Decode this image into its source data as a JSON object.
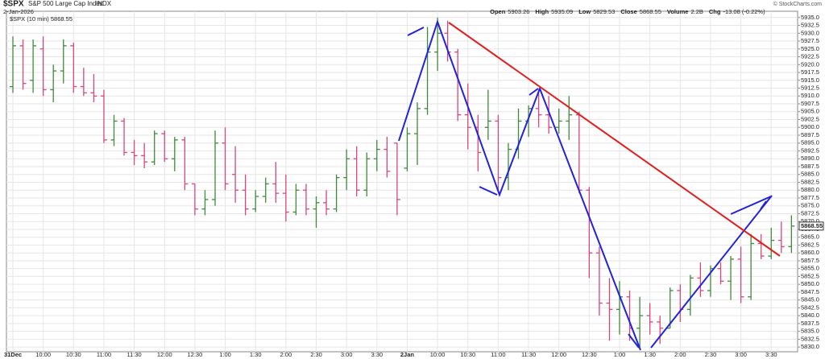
{
  "header": {
    "symbol": "$SPX",
    "name": "S&P 500 Large Cap Index",
    "exchange": "INDX",
    "date": "2-Jan-2026",
    "stats": [
      {
        "label": "Open",
        "value": "5903.26"
      },
      {
        "label": "High",
        "value": "5935.09"
      },
      {
        "label": "Low",
        "value": "5829.53"
      },
      {
        "label": "Close",
        "value": "5868.55"
      },
      {
        "label": "Volume",
        "value": "2.2B"
      },
      {
        "label": "Chg",
        "value": "-13.08 (-0.22%)"
      }
    ],
    "copyright": "© StockCharts.com"
  },
  "chart_data": {
    "type": "ohlc",
    "legend": "$SPX (10 min) 5868.55",
    "last_price": 5868.55,
    "up_color": "#3f8a3a",
    "down_color": "#d9467a",
    "grid": true,
    "categories": [
      "31Dec",
      null,
      null,
      "10:00",
      null,
      null,
      "10:30",
      null,
      null,
      "11:00",
      null,
      null,
      "11:30",
      null,
      null,
      "12:00",
      null,
      null,
      "12:30",
      null,
      null,
      "1:00",
      null,
      null,
      "1:30",
      null,
      null,
      "2:00",
      null,
      null,
      "2:30",
      null,
      null,
      "3:00",
      null,
      null,
      "3:30",
      null,
      null,
      "2Jan",
      null,
      null,
      "10:00",
      null,
      null,
      "10:30",
      null,
      null,
      "11:00",
      null,
      null,
      "11:30",
      null,
      null,
      "12:00",
      null,
      null,
      "12:30",
      null,
      null,
      "1:00",
      null,
      null,
      "1:30",
      null,
      null,
      "2:00",
      null,
      null,
      "2:30",
      null,
      null,
      "3:00",
      null,
      null,
      "3:30",
      null,
      null
    ],
    "open": [
      5913,
      5926,
      5915,
      5925,
      5912,
      5918,
      5926,
      5913,
      5911,
      5910,
      5896,
      5902,
      5892,
      5891,
      5889,
      5898,
      5890,
      5896,
      5882,
      5874,
      5877,
      5895,
      5885,
      5880,
      5874,
      5878,
      5882,
      5879,
      5873,
      5880,
      5874,
      5876,
      5874,
      5884,
      5890,
      5880,
      5890,
      5893,
      5895,
      5887,
      5898,
      5906,
      5924,
      5930,
      5924,
      5904,
      5900,
      5900,
      5902,
      5884,
      5893,
      5902,
      5906,
      5904,
      5900,
      5902,
      5904,
      5880,
      5860,
      5844,
      5842,
      5846,
      5836,
      5840,
      5838,
      5836,
      5848,
      5842,
      5852,
      5848,
      5855,
      5851,
      5858,
      5846,
      5863,
      5859,
      5864,
      5862
    ],
    "high": [
      5929,
      5928,
      5928,
      5929,
      5920,
      5928,
      5927,
      5919,
      5917,
      5912,
      5904,
      5903,
      5896,
      5895,
      5899,
      5899,
      5897,
      5897,
      5882,
      5880,
      5899,
      5900,
      5894,
      5885,
      5880,
      5884,
      5889,
      5885,
      5882,
      5882,
      5878,
      5880,
      5885,
      5893,
      5894,
      5892,
      5896,
      5897,
      5895,
      5900,
      5908,
      5932,
      5935,
      5934,
      5925,
      5914,
      5904,
      5912,
      5904,
      5895,
      5906,
      5907,
      5912,
      5910,
      5906,
      5910,
      5905,
      5881,
      5862,
      5852,
      5851,
      5848,
      5846,
      5844,
      5840,
      5849,
      5850,
      5853,
      5857,
      5856,
      5857,
      5859,
      5862,
      5866,
      5866,
      5868,
      5870,
      5872
    ],
    "low": [
      5911,
      5912,
      5911,
      5910,
      5908,
      5914,
      5911,
      5910,
      5908,
      5895,
      5894,
      5891,
      5888,
      5887,
      5888,
      5889,
      5886,
      5880,
      5872,
      5872,
      5875,
      5880,
      5876,
      5872,
      5873,
      5876,
      5876,
      5870,
      5872,
      5872,
      5868,
      5872,
      5873,
      5880,
      5878,
      5878,
      5886,
      5884,
      5872,
      5886,
      5888,
      5904,
      5918,
      5921,
      5902,
      5893,
      5886,
      5896,
      5880,
      5880,
      5890,
      5897,
      5900,
      5898,
      5898,
      5896,
      5879,
      5852,
      5840,
      5832,
      5834,
      5832,
      5830,
      5834,
      5831,
      5836,
      5838,
      5840,
      5846,
      5846,
      5850,
      5845,
      5844,
      5845,
      5858,
      5858,
      5860,
      5860
    ],
    "close": [
      5926,
      5914,
      5926,
      5912,
      5918,
      5926,
      5913,
      5911,
      5910,
      5896,
      5902,
      5892,
      5891,
      5889,
      5898,
      5890,
      5896,
      5882,
      5874,
      5877,
      5895,
      5882,
      5880,
      5874,
      5878,
      5882,
      5879,
      5873,
      5880,
      5874,
      5876,
      5874,
      5884,
      5890,
      5880,
      5890,
      5893,
      5886,
      5877,
      5898,
      5906,
      5924,
      5930,
      5924,
      5904,
      5900,
      5892,
      5902,
      5884,
      5893,
      5902,
      5906,
      5904,
      5900,
      5902,
      5904,
      5880,
      5860,
      5844,
      5842,
      5846,
      5836,
      5840,
      5838,
      5836,
      5848,
      5842,
      5852,
      5848,
      5855,
      5851,
      5858,
      5846,
      5863,
      5859,
      5864,
      5862,
      5868.55
    ],
    "ylim": [
      5828.5,
      5937
    ],
    "yticks": [
      {
        "value": 5830,
        "label": "5830.0"
      },
      {
        "value": 5832.5,
        "label": "5832.5"
      },
      {
        "value": 5835,
        "label": "5835.0"
      },
      {
        "value": 5837.5,
        "label": "5837.5"
      },
      {
        "value": 5840,
        "label": "5840.0"
      },
      {
        "value": 5842.5,
        "label": "5842.5"
      },
      {
        "value": 5845,
        "label": "5845.0"
      },
      {
        "value": 5847.5,
        "label": "5847.5"
      },
      {
        "value": 5850,
        "label": "5850.0"
      },
      {
        "value": 5852.5,
        "label": "5852.5"
      },
      {
        "value": 5855,
        "label": "5855.0"
      },
      {
        "value": 5857.5,
        "label": "5857.5"
      },
      {
        "value": 5860,
        "label": "5860.0"
      },
      {
        "value": 5862.5,
        "label": "5862.5"
      },
      {
        "value": 5865,
        "label": "5865.0"
      },
      {
        "value": 5867.5,
        "label": "5867.5"
      },
      {
        "value": 5870,
        "label": "5870.0"
      },
      {
        "value": 5872.5,
        "label": "5872.5"
      },
      {
        "value": 5875,
        "label": "5875.0"
      },
      {
        "value": 5877.5,
        "label": "5877.5"
      },
      {
        "value": 5880,
        "label": "5880.0"
      },
      {
        "value": 5882.5,
        "label": "5882.5"
      },
      {
        "value": 5885,
        "label": "5885.0"
      },
      {
        "value": 5887.5,
        "label": "5887.5"
      },
      {
        "value": 5890,
        "label": "5890.0"
      },
      {
        "value": 5892.5,
        "label": "5892.5"
      },
      {
        "value": 5895,
        "label": "5895.0"
      },
      {
        "value": 5897.5,
        "label": "5897.5"
      },
      {
        "value": 5900,
        "label": "5900.0"
      },
      {
        "value": 5902.5,
        "label": "5902.5"
      },
      {
        "value": 5905,
        "label": "5905.0"
      },
      {
        "value": 5907.5,
        "label": "5907.5"
      },
      {
        "value": 5910,
        "label": "5910.0"
      },
      {
        "value": 5912.5,
        "label": "5912.5"
      },
      {
        "value": 5915,
        "label": "5915.0"
      },
      {
        "value": 5917.5,
        "label": "5917.5"
      },
      {
        "value": 5920,
        "label": "5920.0"
      },
      {
        "value": 5922.5,
        "label": "5922.5"
      },
      {
        "value": 5925,
        "label": "5925.0"
      },
      {
        "value": 5927.5,
        "label": "5927.5"
      },
      {
        "value": 5930,
        "label": "5930.0"
      },
      {
        "value": 5932.5,
        "label": "5932.5"
      },
      {
        "value": 5935,
        "label": "5935.0"
      }
    ]
  }
}
